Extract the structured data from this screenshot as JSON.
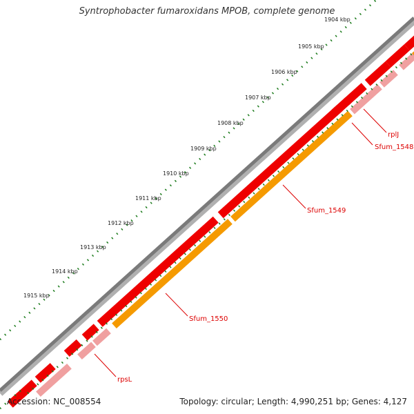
{
  "title": "Syntrophobacter fumaroxidans MPOB, complete genome",
  "footer": {
    "accession": "Accession: NC_008554",
    "summary": "Topology: circular; Length: 4,990,251 bp; Genes: 4,127"
  },
  "scale_labels": [
    "1904 kbp",
    "1905 kbp",
    "1906 kbp",
    "1907 kbp",
    "1908 kbp",
    "1909 kbp",
    "1910 kbp",
    "1911 kbp",
    "1912 kbp",
    "1913 kbp",
    "1914 kbp",
    "1915 kbp"
  ],
  "gene_labels": [
    "rplJ",
    "Sfum_1548",
    "Sfum_1549",
    "Sfum_1550",
    "rpsL"
  ],
  "colors": {
    "backbone": "#7a7a7a",
    "gene_forward": "#ee0000",
    "gene_light": "#f0a0a0",
    "gene_orange": "#f59a00",
    "tick": "#1a7a1a",
    "label": "#dd0000"
  }
}
